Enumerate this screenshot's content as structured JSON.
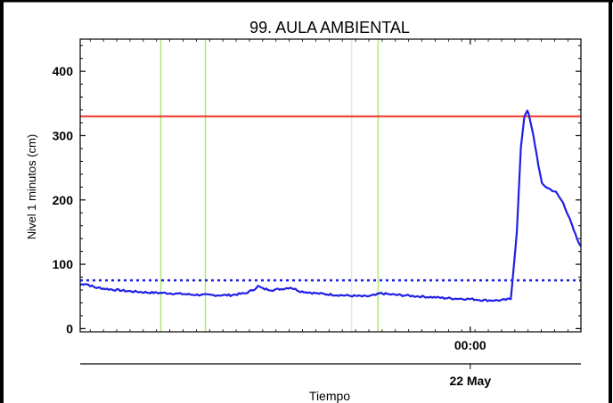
{
  "chart_data": {
    "type": "line",
    "title": "99. AULA AMBIENTAL",
    "ylabel": "Nivel 1 minutos (cm)",
    "xlabel": "Tiempo",
    "ylim": [
      -5,
      450
    ],
    "y_ticks": [
      0,
      100,
      200,
      300,
      400
    ],
    "x_ticks": [
      {
        "label": "00:00",
        "x": 0.779
      }
    ],
    "date_label": {
      "label": "22 May",
      "x": 0.779
    },
    "grid": false,
    "series": [
      {
        "color": "#1f1fe6",
        "points": [
          [
            0.0,
            68
          ],
          [
            0.01,
            70
          ],
          [
            0.03,
            64
          ],
          [
            0.06,
            61
          ],
          [
            0.1,
            58
          ],
          [
            0.14,
            56
          ],
          [
            0.18,
            55
          ],
          [
            0.22,
            53
          ],
          [
            0.26,
            52
          ],
          [
            0.3,
            52
          ],
          [
            0.33,
            55
          ],
          [
            0.345,
            60
          ],
          [
            0.355,
            66
          ],
          [
            0.365,
            62
          ],
          [
            0.385,
            60
          ],
          [
            0.405,
            62
          ],
          [
            0.42,
            64
          ],
          [
            0.44,
            58
          ],
          [
            0.47,
            55
          ],
          [
            0.5,
            53
          ],
          [
            0.54,
            51
          ],
          [
            0.57,
            50
          ],
          [
            0.59,
            52
          ],
          [
            0.6,
            55
          ],
          [
            0.62,
            53
          ],
          [
            0.66,
            51
          ],
          [
            0.7,
            49
          ],
          [
            0.74,
            47
          ],
          [
            0.78,
            46
          ],
          [
            0.81,
            44
          ],
          [
            0.84,
            44
          ],
          [
            0.86,
            46
          ],
          [
            0.872,
            150
          ],
          [
            0.88,
            280
          ],
          [
            0.887,
            330
          ],
          [
            0.893,
            340
          ],
          [
            0.898,
            325
          ],
          [
            0.905,
            300
          ],
          [
            0.915,
            255
          ],
          [
            0.922,
            225
          ],
          [
            0.935,
            218
          ],
          [
            0.95,
            212
          ],
          [
            0.965,
            195
          ],
          [
            0.98,
            165
          ],
          [
            0.992,
            140
          ],
          [
            1.0,
            128
          ]
        ]
      }
    ],
    "reference_lines": [
      {
        "value": 330,
        "color": "#ee3322",
        "style": "solid"
      },
      {
        "value": 75,
        "color": "#1f1fe6",
        "style": "dotted"
      }
    ],
    "vertical_markers": [
      {
        "x": 0.161,
        "color": "#aee67a"
      },
      {
        "x": 0.25,
        "color": "#aee67a"
      },
      {
        "x": 0.542,
        "color": "#e2e8e2"
      },
      {
        "x": 0.595,
        "color": "#aee67a"
      }
    ]
  }
}
